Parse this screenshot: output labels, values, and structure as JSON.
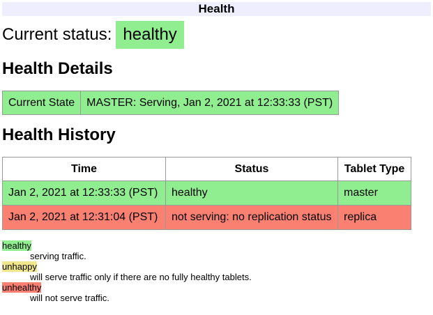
{
  "header": {
    "title": "Health"
  },
  "current_status": {
    "label": "Current status:",
    "value": "healthy",
    "color": "#90ee90"
  },
  "details": {
    "heading": "Health Details",
    "rows": [
      {
        "key": "Current State",
        "value": "MASTER: Serving, Jan 2, 2021 at 12:33:33 (PST)"
      }
    ]
  },
  "history": {
    "heading": "Health History",
    "columns": [
      "Time",
      "Status",
      "Tablet Type"
    ],
    "rows": [
      {
        "time": "Jan 2, 2021 at 12:33:33 (PST)",
        "status": "healthy",
        "type": "master",
        "color": "#90ee90"
      },
      {
        "time": "Jan 2, 2021 at 12:31:04 (PST)",
        "status": "not serving: no replication status",
        "type": "replica",
        "color": "#fa8072"
      }
    ]
  },
  "legend": [
    {
      "term": "healthy",
      "desc": "serving traffic.",
      "color": "#90ee90"
    },
    {
      "term": "unhappy",
      "desc": "will serve traffic only if there are no fully healthy tablets.",
      "color": "#f0e68c"
    },
    {
      "term": "unhealthy",
      "desc": "will not serve traffic.",
      "color": "#fa8072"
    }
  ]
}
